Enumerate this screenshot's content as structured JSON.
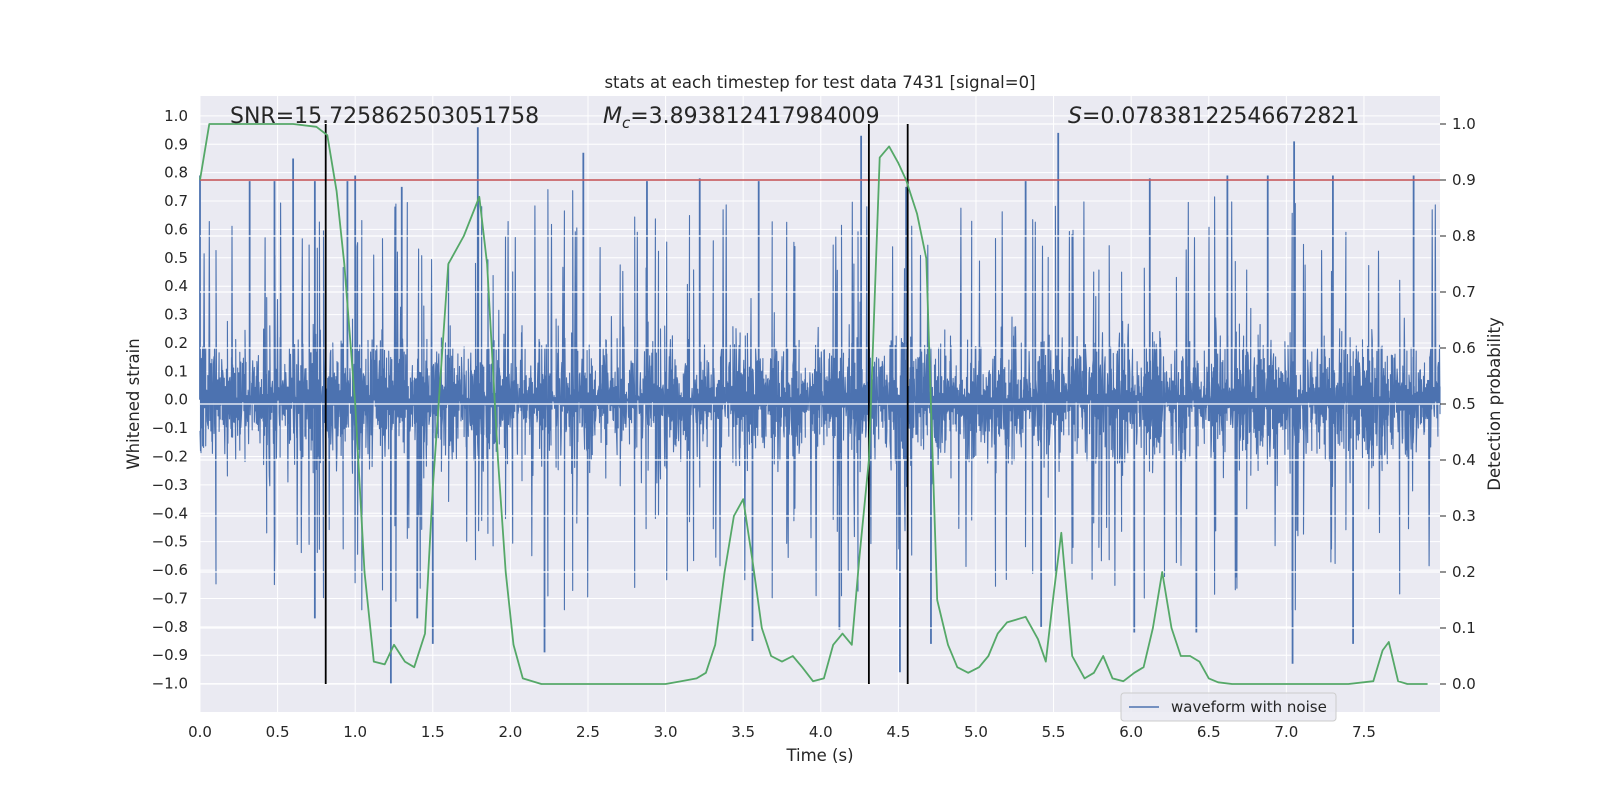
{
  "chart_data": {
    "type": "line",
    "title": "stats at each timestep for test data 7431 [signal=0]",
    "xlabel": "Time (s)",
    "ylabel_left": "Whitened strain",
    "ylabel_right": "Detection probability",
    "xlim": [
      0.0,
      7.99
    ],
    "ylim_left": [
      -1.1,
      1.07
    ],
    "ylim_right": [
      -0.05,
      1.05
    ],
    "x_ticks": [
      0.0,
      0.5,
      1.0,
      1.5,
      2.0,
      2.5,
      3.0,
      3.5,
      4.0,
      4.5,
      5.0,
      5.5,
      6.0,
      6.5,
      7.0,
      7.5
    ],
    "x_tick_labels": [
      "0.0",
      "0.5",
      "1.0",
      "1.5",
      "2.0",
      "2.5",
      "3.0",
      "3.5",
      "4.0",
      "4.5",
      "5.0",
      "5.5",
      "6.0",
      "6.5",
      "7.0",
      "7.5"
    ],
    "y_left_ticks": [
      1.0,
      0.9,
      0.8,
      0.7,
      0.6,
      0.5,
      0.4,
      0.3,
      0.2,
      0.1,
      0.0,
      -0.1,
      -0.2,
      -0.3,
      -0.4,
      -0.5,
      -0.6,
      -0.7,
      -0.8,
      -0.9,
      -1.0
    ],
    "y_left_tick_labels": [
      "1.0",
      "0.9",
      "0.8",
      "0.7",
      "0.6",
      "0.5",
      "0.4",
      "0.3",
      "0.2",
      "0.1",
      "0.0",
      "−0.1",
      "−0.2",
      "−0.3",
      "−0.4",
      "−0.5",
      "−0.6",
      "−0.7",
      "−0.8",
      "−0.9",
      "−1.0"
    ],
    "y_right_ticks": [
      1.0,
      0.9,
      0.8,
      0.7,
      0.6,
      0.5,
      0.4,
      0.3,
      0.2,
      0.1,
      0.0
    ],
    "y_right_tick_labels": [
      "1.0",
      "0.9",
      "0.8",
      "0.7",
      "0.6",
      "0.5",
      "0.4",
      "0.3",
      "0.2",
      "0.1",
      "0.0"
    ],
    "annotations": {
      "snr": "SNR=15.725862503051758",
      "mc_symbol": "M",
      "mc_subscript": "c",
      "mc_value": "=3.893812417984009",
      "s_symbol": "S",
      "s_value": "=0.07838122546672821"
    },
    "threshold_line": {
      "axis": "right",
      "value": 0.9,
      "color": "#c44e52"
    },
    "vertical_lines": {
      "x": [
        0.81,
        4.31,
        4.56
      ],
      "y_range_right": [
        0.0,
        1.0
      ],
      "color": "#000000"
    },
    "legend": {
      "label": "waveform with noise",
      "location": "lower-right"
    },
    "waveform": {
      "name": "waveform with noise",
      "axis": "left",
      "color": "#4c72b0",
      "noise_seed": 7431,
      "positive_peaks": [
        {
          "x": 0.0,
          "y": 0.79
        },
        {
          "x": 0.32,
          "y": 0.77
        },
        {
          "x": 0.48,
          "y": 0.77
        },
        {
          "x": 0.6,
          "y": 0.85
        },
        {
          "x": 0.74,
          "y": 0.77
        },
        {
          "x": 0.95,
          "y": 0.77
        },
        {
          "x": 1.0,
          "y": 0.79
        },
        {
          "x": 1.3,
          "y": 0.75
        },
        {
          "x": 1.79,
          "y": 0.96
        },
        {
          "x": 2.47,
          "y": 0.87
        },
        {
          "x": 2.88,
          "y": 0.77
        },
        {
          "x": 3.22,
          "y": 0.78
        },
        {
          "x": 3.6,
          "y": 0.77
        },
        {
          "x": 4.26,
          "y": 0.93
        },
        {
          "x": 4.55,
          "y": 0.75
        },
        {
          "x": 5.32,
          "y": 0.77
        },
        {
          "x": 5.53,
          "y": 0.94
        },
        {
          "x": 6.12,
          "y": 0.78
        },
        {
          "x": 6.62,
          "y": 0.79
        },
        {
          "x": 6.88,
          "y": 0.79
        },
        {
          "x": 7.05,
          "y": 0.91
        },
        {
          "x": 7.3,
          "y": 0.79
        },
        {
          "x": 7.82,
          "y": 0.79
        }
      ],
      "negative_peaks": [
        {
          "x": 0.74,
          "y": -0.77
        },
        {
          "x": 1.23,
          "y": -1.0
        },
        {
          "x": 1.4,
          "y": -0.77
        },
        {
          "x": 1.5,
          "y": -0.86
        },
        {
          "x": 2.22,
          "y": -0.89
        },
        {
          "x": 3.56,
          "y": -0.85
        },
        {
          "x": 4.12,
          "y": -0.81
        },
        {
          "x": 4.51,
          "y": -0.96
        },
        {
          "x": 4.71,
          "y": -0.86
        },
        {
          "x": 5.42,
          "y": -0.8
        },
        {
          "x": 6.02,
          "y": -0.82
        },
        {
          "x": 6.42,
          "y": -0.82
        },
        {
          "x": 7.04,
          "y": -0.93
        },
        {
          "x": 7.43,
          "y": -0.86
        }
      ]
    },
    "probability": {
      "name": "detection probability",
      "axis": "right",
      "color": "#55a868",
      "x": [
        0.0,
        0.06,
        0.2,
        0.4,
        0.6,
        0.75,
        0.82,
        0.88,
        0.93,
        1.0,
        1.06,
        1.12,
        1.19,
        1.25,
        1.32,
        1.38,
        1.45,
        1.5,
        1.6,
        1.7,
        1.8,
        1.85,
        1.92,
        1.97,
        2.02,
        2.08,
        2.2,
        2.4,
        2.6,
        2.8,
        3.0,
        3.1,
        3.2,
        3.26,
        3.32,
        3.38,
        3.44,
        3.5,
        3.56,
        3.62,
        3.68,
        3.75,
        3.82,
        3.88,
        3.95,
        4.02,
        4.08,
        4.14,
        4.2,
        4.25,
        4.31,
        4.38,
        4.44,
        4.5,
        4.55,
        4.62,
        4.68,
        4.75,
        4.82,
        4.88,
        4.95,
        5.02,
        5.08,
        5.14,
        5.2,
        5.32,
        5.4,
        5.45,
        5.5,
        5.55,
        5.62,
        5.7,
        5.76,
        5.82,
        5.88,
        5.95,
        6.02,
        6.08,
        6.14,
        6.2,
        6.26,
        6.32,
        6.38,
        6.44,
        6.5,
        6.56,
        6.65,
        6.8,
        7.0,
        7.2,
        7.4,
        7.56,
        7.62,
        7.66,
        7.72,
        7.78,
        7.85,
        7.91
      ],
      "y": [
        0.9,
        1.0,
        1.0,
        1.0,
        1.0,
        0.995,
        0.98,
        0.88,
        0.75,
        0.5,
        0.2,
        0.04,
        0.035,
        0.07,
        0.04,
        0.03,
        0.09,
        0.35,
        0.75,
        0.8,
        0.87,
        0.75,
        0.4,
        0.2,
        0.07,
        0.01,
        0.0,
        0.0,
        0.0,
        0.0,
        0.0,
        0.005,
        0.01,
        0.02,
        0.07,
        0.2,
        0.3,
        0.33,
        0.22,
        0.1,
        0.05,
        0.04,
        0.05,
        0.03,
        0.005,
        0.01,
        0.07,
        0.09,
        0.07,
        0.23,
        0.4,
        0.94,
        0.96,
        0.93,
        0.9,
        0.84,
        0.76,
        0.15,
        0.07,
        0.03,
        0.02,
        0.03,
        0.05,
        0.09,
        0.11,
        0.12,
        0.08,
        0.04,
        0.16,
        0.27,
        0.05,
        0.01,
        0.02,
        0.05,
        0.01,
        0.005,
        0.02,
        0.03,
        0.1,
        0.2,
        0.1,
        0.05,
        0.05,
        0.04,
        0.01,
        0.003,
        0.0,
        0.0,
        0.0,
        0.0,
        0.0,
        0.005,
        0.06,
        0.075,
        0.005,
        0.0,
        0.0,
        0.0
      ]
    }
  }
}
